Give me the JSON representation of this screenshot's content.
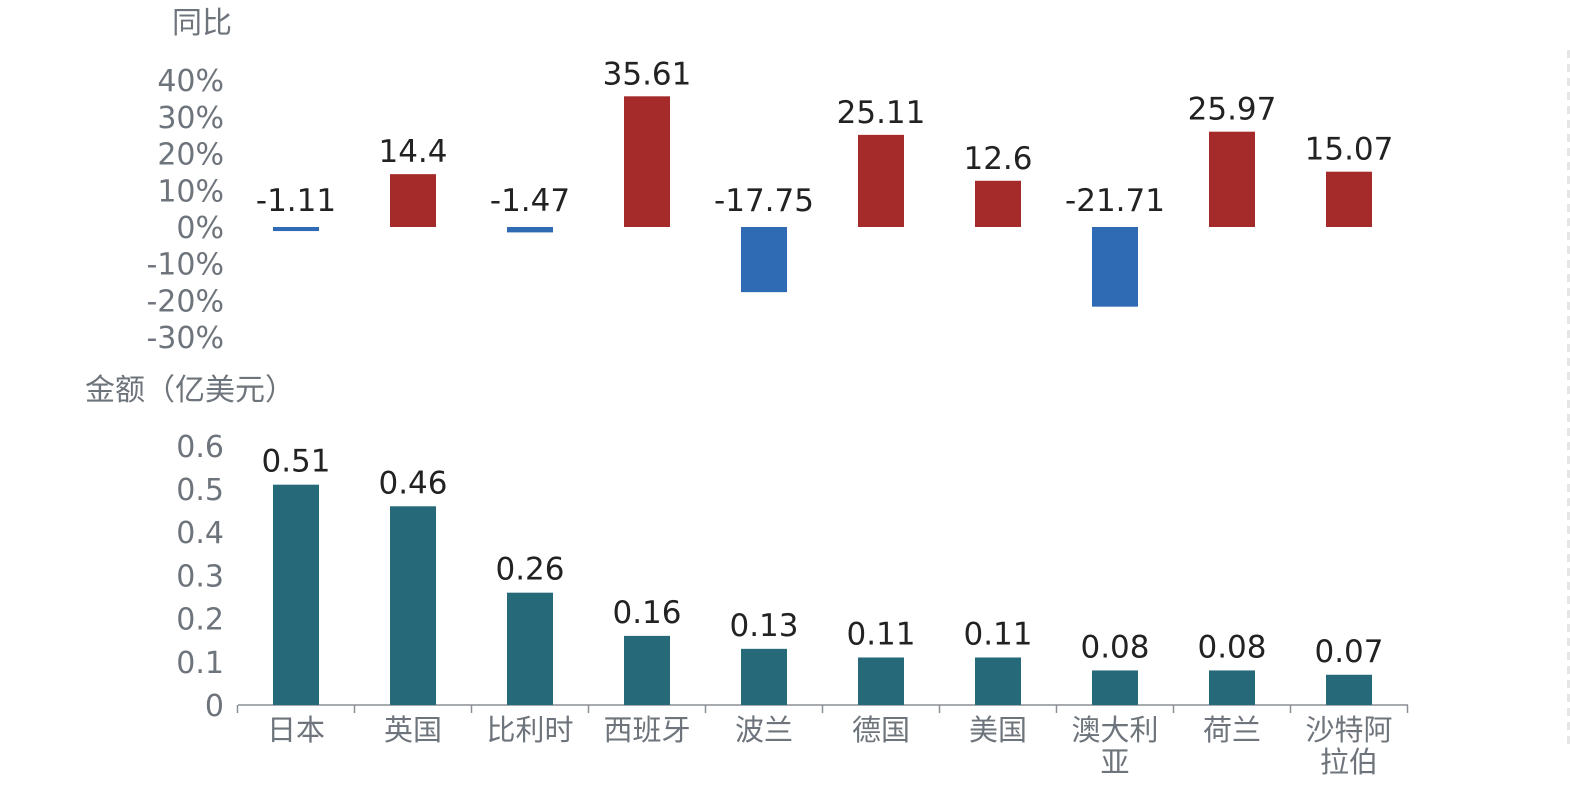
{
  "chart_data": [
    {
      "type": "bar",
      "ylabel": "同比",
      "categories": [
        "日本",
        "英国",
        "比利时",
        "西班牙",
        "波兰",
        "德国",
        "美国",
        "澳大利亚",
        "荷兰",
        "沙特阿拉伯"
      ],
      "values": [
        -1.11,
        14.4,
        -1.47,
        35.61,
        -17.75,
        25.11,
        12.6,
        -21.71,
        25.97,
        15.07
      ],
      "data_labels": [
        "-1.11",
        "14.4",
        "-1.47",
        "35.61",
        "-17.75",
        "25.11",
        "12.6",
        "-21.71",
        "25.97",
        "15.07"
      ],
      "yticks": [
        "40%",
        "30%",
        "20%",
        "10%",
        "0%",
        "-10%",
        "-20%",
        "-30%"
      ],
      "ylim": [
        -30,
        40
      ],
      "colors": {
        "positive": "#A52A2A",
        "negative": "#2F6BB4"
      },
      "grid": false
    },
    {
      "type": "bar",
      "ylabel": "金额（亿美元）",
      "categories": [
        "日本",
        "英国",
        "比利时",
        "西班牙",
        "波兰",
        "德国",
        "美国",
        "澳大利亚",
        "荷兰",
        "沙特阿拉伯"
      ],
      "category_labels": [
        [
          "日本"
        ],
        [
          "英国"
        ],
        [
          "比利时"
        ],
        [
          "西班牙"
        ],
        [
          "波兰"
        ],
        [
          "德国"
        ],
        [
          "美国"
        ],
        [
          "澳大利",
          "亚"
        ],
        [
          "荷兰"
        ],
        [
          "沙特阿",
          "拉伯"
        ]
      ],
      "values": [
        0.51,
        0.46,
        0.26,
        0.16,
        0.13,
        0.11,
        0.11,
        0.08,
        0.08,
        0.07
      ],
      "data_labels": [
        "0.51",
        "0.46",
        "0.26",
        "0.16",
        "0.13",
        "0.11",
        "0.11",
        "0.08",
        "0.08",
        "0.07"
      ],
      "yticks": [
        "0.6",
        "0.5",
        "0.4",
        "0.3",
        "0.2",
        "0.1",
        "0"
      ],
      "ylim": [
        0,
        0.6
      ],
      "colors": {
        "bar": "#266A7A"
      },
      "grid": false
    }
  ]
}
